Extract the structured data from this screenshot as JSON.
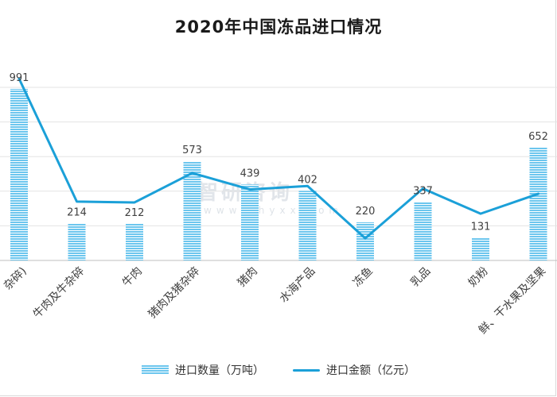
{
  "chart_data": {
    "type": "bar",
    "title": "2020年中国冻品进口情况",
    "categories": [
      "杂碎)",
      "牛肉及牛杂碎",
      "牛肉",
      "猪肉及猪杂碎",
      "猪肉",
      "水海产品",
      "冻鱼",
      "乳品",
      "奶粉",
      "鲜、干水果及坚果"
    ],
    "series": [
      {
        "name": "进口数量（万吨）",
        "type": "bar",
        "values": [
          991,
          214,
          212,
          573,
          439,
          402,
          220,
          337,
          131,
          652
        ],
        "color": "#6cc6ee"
      },
      {
        "name": "进口金额（亿元）",
        "type": "line",
        "values": [
          1050,
          340,
          335,
          505,
          410,
          430,
          128,
          415,
          270,
          385
        ],
        "color": "#1ba0d8"
      }
    ],
    "ylim": [
      0,
      1000
    ],
    "grid": true,
    "legend": "bottom"
  },
  "watermark": {
    "main": "智研咨询",
    "sub": "www.chyxx.com"
  }
}
